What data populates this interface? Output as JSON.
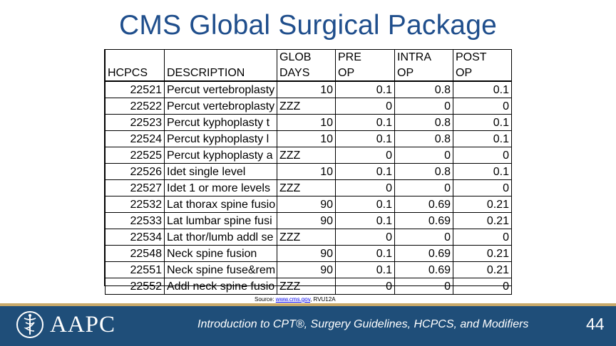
{
  "title": "CMS Global Surgical Package",
  "table": {
    "header_top": [
      "",
      "",
      "GLOB",
      "PRE",
      "INTRA",
      "POST"
    ],
    "header_bottom": [
      "HCPCS",
      "DESCRIPTION",
      "DAYS",
      "OP",
      "OP",
      "OP"
    ],
    "rows": [
      [
        "22521",
        "Percut vertebroplasty",
        "10",
        "0.1",
        "0.8",
        "0.1"
      ],
      [
        "22522",
        "Percut vertebroplasty",
        "ZZZ",
        "0",
        "0",
        "0"
      ],
      [
        "22523",
        "Percut kyphoplasty t",
        "10",
        "0.1",
        "0.8",
        "0.1"
      ],
      [
        "22524",
        "Percut kyphoplasty l",
        "10",
        "0.1",
        "0.8",
        "0.1"
      ],
      [
        "22525",
        "Percut kyphoplasty a",
        "ZZZ",
        "0",
        "0",
        "0"
      ],
      [
        "22526",
        "Idet single level",
        "10",
        "0.1",
        "0.8",
        "0.1"
      ],
      [
        "22527",
        "Idet 1 or more levels",
        "ZZZ",
        "0",
        "0",
        "0"
      ],
      [
        "22532",
        "Lat thorax spine fusio",
        "90",
        "0.1",
        "0.69",
        "0.21"
      ],
      [
        "22533",
        "Lat lumbar spine fusi",
        "90",
        "0.1",
        "0.69",
        "0.21"
      ],
      [
        "22534",
        "Lat thor/lumb addl se",
        "ZZZ",
        "0",
        "0",
        "0"
      ],
      [
        "22548",
        "Neck spine fusion",
        "90",
        "0.1",
        "0.69",
        "0.21"
      ],
      [
        "22551",
        "Neck spine fuse&rem",
        "90",
        "0.1",
        "0.69",
        "0.21"
      ],
      [
        "22552",
        "Addl neck spine fusio",
        "ZZZ",
        "0",
        "0",
        "0"
      ]
    ]
  },
  "source": {
    "prefix": "Source: ",
    "link": "www.cms.gov",
    "suffix": ", RVU12A"
  },
  "footer": {
    "logo_text": "AAPC",
    "logo_icon": "caduceus-icon",
    "course": "Introduction to CPT®, Surgery Guidelines, HCPCS, and Modifiers",
    "page_number": "44",
    "background_color": "#1f4e79",
    "accent_color": "#c8a96a"
  }
}
